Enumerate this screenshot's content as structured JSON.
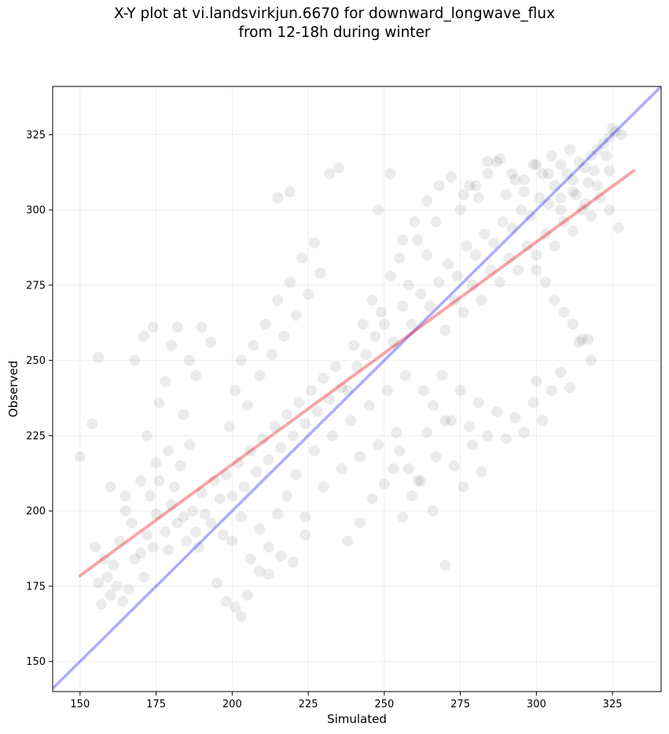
{
  "chart_data": {
    "type": "scatter",
    "title": "X-Y plot at vi.landsvirkjun.6670 for downward_longwave_flux\nfrom 12-18h during winter",
    "xlabel": "Simulated",
    "ylabel": "Observed",
    "xlim": [
      141,
      341
    ],
    "ylim": [
      140,
      341
    ],
    "x_ticks": [
      150,
      175,
      200,
      225,
      250,
      275,
      300,
      325
    ],
    "y_ticks": [
      150,
      175,
      200,
      225,
      250,
      275,
      300,
      325
    ],
    "grid": true,
    "point_color": "#000000",
    "identity_line": {
      "color": "#0000ff",
      "from": [
        141,
        141
      ],
      "to": [
        341,
        341
      ]
    },
    "fit_line": {
      "color": "#e8000b",
      "from": [
        150,
        178.5
      ],
      "to": [
        332,
        313
      ]
    },
    "points": [
      [
        150,
        218
      ],
      [
        154,
        229
      ],
      [
        156,
        251
      ],
      [
        155,
        188
      ],
      [
        158,
        184
      ],
      [
        156,
        176
      ],
      [
        157,
        169
      ],
      [
        159,
        178
      ],
      [
        160,
        172
      ],
      [
        161,
        182
      ],
      [
        162,
        175
      ],
      [
        164,
        170
      ],
      [
        163,
        190
      ],
      [
        166,
        174
      ],
      [
        168,
        184
      ],
      [
        165,
        200
      ],
      [
        167,
        196
      ],
      [
        170,
        186
      ],
      [
        172,
        192
      ],
      [
        171,
        178
      ],
      [
        174,
        188
      ],
      [
        175,
        199
      ],
      [
        173,
        205
      ],
      [
        176,
        210
      ],
      [
        178,
        193
      ],
      [
        179,
        187
      ],
      [
        180,
        202
      ],
      [
        182,
        196
      ],
      [
        181,
        208
      ],
      [
        184,
        198
      ],
      [
        185,
        190
      ],
      [
        187,
        200
      ],
      [
        188,
        193
      ],
      [
        190,
        206
      ],
      [
        191,
        199
      ],
      [
        189,
        188
      ],
      [
        193,
        196
      ],
      [
        194,
        210
      ],
      [
        196,
        204
      ],
      [
        197,
        192
      ],
      [
        160,
        208
      ],
      [
        165,
        205
      ],
      [
        170,
        210
      ],
      [
        172,
        225
      ],
      [
        176,
        236
      ],
      [
        178,
        243
      ],
      [
        180,
        255
      ],
      [
        174,
        261
      ],
      [
        182,
        261
      ],
      [
        186,
        250
      ],
      [
        190,
        261
      ],
      [
        193,
        256
      ],
      [
        188,
        245
      ],
      [
        184,
        232
      ],
      [
        179,
        220
      ],
      [
        183,
        215
      ],
      [
        186,
        222
      ],
      [
        175,
        216
      ],
      [
        168,
        250
      ],
      [
        171,
        258
      ],
      [
        198,
        212
      ],
      [
        200,
        205
      ],
      [
        202,
        216
      ],
      [
        204,
        208
      ],
      [
        206,
        220
      ],
      [
        208,
        213
      ],
      [
        210,
        224
      ],
      [
        212,
        217
      ],
      [
        214,
        228
      ],
      [
        216,
        221
      ],
      [
        218,
        232
      ],
      [
        220,
        225
      ],
      [
        222,
        236
      ],
      [
        224,
        229
      ],
      [
        226,
        240
      ],
      [
        228,
        233
      ],
      [
        230,
        244
      ],
      [
        232,
        237
      ],
      [
        234,
        248
      ],
      [
        236,
        241
      ],
      [
        199,
        228
      ],
      [
        201,
        240
      ],
      [
        203,
        250
      ],
      [
        205,
        235
      ],
      [
        207,
        255
      ],
      [
        209,
        245
      ],
      [
        211,
        262
      ],
      [
        213,
        252
      ],
      [
        215,
        270
      ],
      [
        217,
        258
      ],
      [
        219,
        276
      ],
      [
        221,
        265
      ],
      [
        223,
        284
      ],
      [
        225,
        272
      ],
      [
        227,
        289
      ],
      [
        229,
        279
      ],
      [
        232,
        312
      ],
      [
        235,
        314
      ],
      [
        219,
        306
      ],
      [
        215,
        304
      ],
      [
        200,
        190
      ],
      [
        203,
        198
      ],
      [
        206,
        184
      ],
      [
        209,
        194
      ],
      [
        212,
        188
      ],
      [
        215,
        199
      ],
      [
        218,
        205
      ],
      [
        221,
        212
      ],
      [
        224,
        198
      ],
      [
        227,
        220
      ],
      [
        230,
        208
      ],
      [
        233,
        225
      ],
      [
        236,
        214
      ],
      [
        239,
        230
      ],
      [
        242,
        218
      ],
      [
        245,
        235
      ],
      [
        248,
        222
      ],
      [
        251,
        240
      ],
      [
        254,
        226
      ],
      [
        257,
        245
      ],
      [
        195,
        176
      ],
      [
        198,
        170
      ],
      [
        201,
        168
      ],
      [
        203,
        165
      ],
      [
        205,
        172
      ],
      [
        209,
        180
      ],
      [
        212,
        179
      ],
      [
        216,
        185
      ],
      [
        220,
        183
      ],
      [
        224,
        192
      ],
      [
        238,
        190
      ],
      [
        242,
        196
      ],
      [
        246,
        204
      ],
      [
        250,
        209
      ],
      [
        253,
        214
      ],
      [
        256,
        198
      ],
      [
        259,
        205
      ],
      [
        262,
        210
      ],
      [
        266,
        200
      ],
      [
        270,
        182
      ],
      [
        240,
        255
      ],
      [
        243,
        262
      ],
      [
        246,
        270
      ],
      [
        249,
        266
      ],
      [
        252,
        278
      ],
      [
        255,
        284
      ],
      [
        258,
        275
      ],
      [
        261,
        290
      ],
      [
        264,
        285
      ],
      [
        267,
        296
      ],
      [
        238,
        240
      ],
      [
        241,
        248
      ],
      [
        244,
        252
      ],
      [
        247,
        258
      ],
      [
        250,
        262
      ],
      [
        253,
        256
      ],
      [
        256,
        268
      ],
      [
        259,
        262
      ],
      [
        262,
        272
      ],
      [
        265,
        268
      ],
      [
        268,
        276
      ],
      [
        271,
        282
      ],
      [
        274,
        278
      ],
      [
        277,
        288
      ],
      [
        280,
        285
      ],
      [
        283,
        292
      ],
      [
        286,
        289
      ],
      [
        289,
        296
      ],
      [
        292,
        294
      ],
      [
        295,
        300
      ],
      [
        298,
        298
      ],
      [
        301,
        304
      ],
      [
        304,
        302
      ],
      [
        306,
        308
      ],
      [
        308,
        304
      ],
      [
        310,
        312
      ],
      [
        312,
        310
      ],
      [
        314,
        316
      ],
      [
        316,
        314
      ],
      [
        318,
        318
      ],
      [
        320,
        320
      ],
      [
        322,
        322
      ],
      [
        324,
        324
      ],
      [
        326,
        326
      ],
      [
        328,
        325
      ],
      [
        325,
        327
      ],
      [
        323,
        318
      ],
      [
        319,
        313
      ],
      [
        317,
        309
      ],
      [
        313,
        305
      ],
      [
        270,
        260
      ],
      [
        273,
        270
      ],
      [
        276,
        266
      ],
      [
        279,
        275
      ],
      [
        282,
        270
      ],
      [
        285,
        280
      ],
      [
        288,
        276
      ],
      [
        291,
        284
      ],
      [
        294,
        280
      ],
      [
        297,
        288
      ],
      [
        300,
        285
      ],
      [
        303,
        292
      ],
      [
        306,
        288
      ],
      [
        309,
        296
      ],
      [
        312,
        293
      ],
      [
        315,
        300
      ],
      [
        318,
        298
      ],
      [
        321,
        304
      ],
      [
        324,
        300
      ],
      [
        327,
        294
      ],
      [
        275,
        300
      ],
      [
        278,
        308
      ],
      [
        281,
        304
      ],
      [
        284,
        312
      ],
      [
        287,
        316
      ],
      [
        290,
        305
      ],
      [
        293,
        310
      ],
      [
        296,
        306
      ],
      [
        299,
        315
      ],
      [
        302,
        312
      ],
      [
        305,
        318
      ],
      [
        308,
        315
      ],
      [
        311,
        320
      ],
      [
        300,
        280
      ],
      [
        303,
        276
      ],
      [
        306,
        270
      ],
      [
        309,
        266
      ],
      [
        312,
        262
      ],
      [
        315,
        257
      ],
      [
        318,
        250
      ],
      [
        263,
        240
      ],
      [
        266,
        235
      ],
      [
        269,
        245
      ],
      [
        272,
        230
      ],
      [
        275,
        240
      ],
      [
        278,
        228
      ],
      [
        281,
        236
      ],
      [
        284,
        225
      ],
      [
        287,
        233
      ],
      [
        290,
        224
      ],
      [
        293,
        231
      ],
      [
        296,
        226
      ],
      [
        299,
        236
      ],
      [
        302,
        230
      ],
      [
        305,
        240
      ],
      [
        308,
        246
      ],
      [
        311,
        241
      ],
      [
        314,
        256
      ],
      [
        317,
        257
      ],
      [
        300,
        243
      ],
      [
        255,
        220
      ],
      [
        258,
        214
      ],
      [
        261,
        210
      ],
      [
        264,
        226
      ],
      [
        267,
        218
      ],
      [
        270,
        230
      ],
      [
        273,
        215
      ],
      [
        276,
        208
      ],
      [
        279,
        222
      ],
      [
        282,
        213
      ],
      [
        248,
        300
      ],
      [
        252,
        312
      ],
      [
        256,
        290
      ],
      [
        260,
        296
      ],
      [
        264,
        303
      ],
      [
        268,
        308
      ],
      [
        272,
        311
      ],
      [
        276,
        305
      ],
      [
        280,
        308
      ],
      [
        284,
        316
      ],
      [
        288,
        317
      ],
      [
        292,
        312
      ],
      [
        296,
        310
      ],
      [
        300,
        315
      ],
      [
        304,
        312
      ],
      [
        308,
        300
      ],
      [
        312,
        306
      ],
      [
        316,
        302
      ],
      [
        320,
        308
      ],
      [
        324,
        313
      ]
    ]
  }
}
